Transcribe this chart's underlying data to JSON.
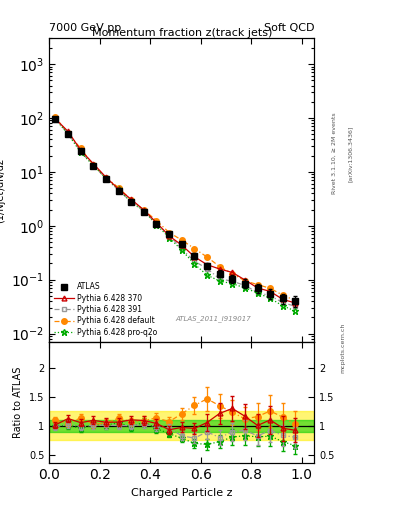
{
  "title_top_left": "7000 GeV pp",
  "title_top_right": "Soft QCD",
  "main_title": "Momentum fraction z(track jets)",
  "xlabel": "Charged Particle z",
  "ylabel_main": "(1/Njet)dN/dz",
  "ylabel_ratio": "Ratio to ATLAS",
  "right_label_main": "Rivet 3.1.10, ≥ 2M events",
  "right_label_sub": "[arXiv:1306.3436]",
  "right_label_mcplots": "mcplots.cern.ch",
  "watermark": "ATLAS_2011_I919017",
  "xlim": [
    0.0,
    1.05
  ],
  "ylim_main": [
    0.007,
    3000
  ],
  "ylim_ratio": [
    0.35,
    2.45
  ],
  "ratio_yticks": [
    0.5,
    1.0,
    1.5,
    2.0
  ],
  "x_data": [
    0.025,
    0.075,
    0.125,
    0.175,
    0.225,
    0.275,
    0.325,
    0.375,
    0.425,
    0.475,
    0.525,
    0.575,
    0.625,
    0.675,
    0.725,
    0.775,
    0.825,
    0.875,
    0.925,
    0.975
  ],
  "atlas_y": [
    95,
    50,
    24,
    13,
    7.5,
    4.5,
    2.8,
    1.8,
    1.1,
    0.7,
    0.45,
    0.28,
    0.18,
    0.13,
    0.105,
    0.085,
    0.07,
    0.055,
    0.045,
    0.04
  ],
  "atlas_yerr": [
    5,
    3,
    1.5,
    0.8,
    0.5,
    0.3,
    0.18,
    0.12,
    0.08,
    0.05,
    0.04,
    0.03,
    0.025,
    0.02,
    0.018,
    0.016,
    0.014,
    0.012,
    0.01,
    0.009
  ],
  "py370_y": [
    97,
    52,
    25,
    13.5,
    8.0,
    4.8,
    3.0,
    1.9,
    1.15,
    0.72,
    0.44,
    0.26,
    0.19,
    0.155,
    0.135,
    0.105,
    0.068,
    0.062,
    0.044,
    0.036
  ],
  "py391_y": [
    96,
    51,
    24.5,
    13.2,
    7.7,
    4.6,
    2.9,
    1.85,
    1.08,
    0.65,
    0.38,
    0.22,
    0.148,
    0.102,
    0.092,
    0.077,
    0.062,
    0.051,
    0.041,
    0.031
  ],
  "pydef_y": [
    98,
    53,
    25.5,
    14.0,
    8.2,
    5.0,
    3.1,
    2.0,
    1.2,
    0.78,
    0.55,
    0.38,
    0.26,
    0.17,
    0.13,
    0.1,
    0.078,
    0.062,
    0.05,
    0.04
  ],
  "pyq2o_y": [
    96,
    51,
    24.3,
    13.0,
    7.6,
    4.5,
    2.85,
    1.82,
    1.06,
    0.62,
    0.36,
    0.2,
    0.133,
    0.092,
    0.082,
    0.067,
    0.055,
    0.044,
    0.035,
    0.026
  ],
  "color_atlas": "#000000",
  "color_py370": "#CC0000",
  "color_py391": "#999999",
  "color_pydef": "#FF8800",
  "color_pyq2o": "#00AA00",
  "green_band_color": "#00CC00",
  "yellow_band_color": "#FFEE00",
  "alpha_green": 0.55,
  "alpha_yellow": 0.55,
  "green_band_half": 0.1,
  "yellow_band_half": 0.25
}
